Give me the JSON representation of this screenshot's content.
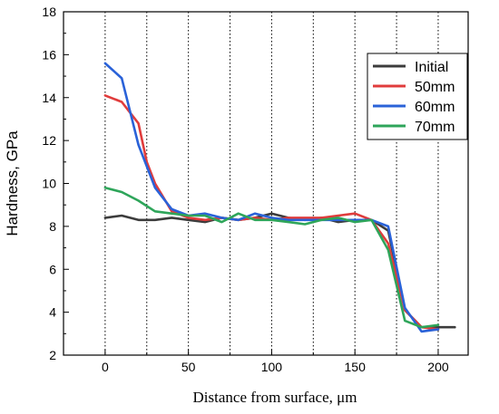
{
  "chart_data": {
    "type": "line",
    "xlabel": "Distance from surface, μm",
    "ylabel": "Hardness, GPa",
    "xlim": [
      -25,
      218
    ],
    "ylim": [
      2,
      18
    ],
    "xticks": [
      0,
      50,
      100,
      150,
      200
    ],
    "yticks": [
      2,
      4,
      6,
      8,
      10,
      12,
      14,
      16,
      18
    ],
    "vgrid_dotted_at": [
      0,
      25,
      50,
      75,
      100,
      125,
      150,
      175,
      200
    ],
    "legend_position": "top-right",
    "series": [
      {
        "name": "Initial",
        "color": "#3c3c3c",
        "x": [
          0,
          10,
          20,
          30,
          40,
          50,
          60,
          70,
          80,
          90,
          100,
          110,
          120,
          130,
          140,
          150,
          160,
          170,
          180,
          190,
          200,
          210
        ],
        "y": [
          8.4,
          8.5,
          8.3,
          8.3,
          8.4,
          8.3,
          8.2,
          8.4,
          8.3,
          8.4,
          8.6,
          8.4,
          8.3,
          8.4,
          8.2,
          8.3,
          8.3,
          7.8,
          4.1,
          3.3,
          3.3,
          3.3
        ]
      },
      {
        "name": "50mm",
        "color": "#e03c3c",
        "x": [
          0,
          10,
          20,
          25,
          30,
          40,
          50,
          60,
          70,
          80,
          90,
          100,
          110,
          120,
          130,
          140,
          150,
          160,
          170,
          180,
          190,
          200
        ],
        "y": [
          14.1,
          13.8,
          12.8,
          11.0,
          10.0,
          8.7,
          8.4,
          8.3,
          8.4,
          8.3,
          8.4,
          8.3,
          8.4,
          8.4,
          8.4,
          8.5,
          8.6,
          8.3,
          7.2,
          4.1,
          3.3,
          3.2
        ]
      },
      {
        "name": "60mm",
        "color": "#2a62d8",
        "x": [
          0,
          10,
          20,
          30,
          40,
          50,
          60,
          70,
          80,
          90,
          100,
          110,
          120,
          130,
          140,
          150,
          160,
          170,
          180,
          190,
          200
        ],
        "y": [
          15.6,
          14.9,
          11.8,
          9.8,
          8.8,
          8.5,
          8.6,
          8.4,
          8.3,
          8.6,
          8.4,
          8.3,
          8.3,
          8.3,
          8.3,
          8.3,
          8.3,
          8.0,
          4.2,
          3.1,
          3.2
        ]
      },
      {
        "name": "70mm",
        "color": "#2ea55a",
        "x": [
          0,
          10,
          20,
          30,
          40,
          50,
          60,
          70,
          80,
          90,
          100,
          110,
          120,
          130,
          140,
          150,
          160,
          170,
          180,
          190,
          200
        ],
        "y": [
          9.8,
          9.6,
          9.2,
          8.7,
          8.6,
          8.5,
          8.5,
          8.2,
          8.6,
          8.3,
          8.3,
          8.2,
          8.1,
          8.3,
          8.4,
          8.2,
          8.3,
          6.9,
          3.6,
          3.3,
          3.4
        ]
      }
    ]
  }
}
